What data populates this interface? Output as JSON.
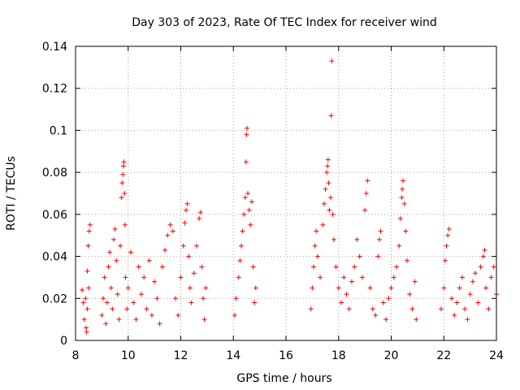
{
  "chart_data": {
    "type": "scatter",
    "title": "Day 303 of 2023, Rate Of TEC Index for receiver wind",
    "xlabel": "GPS time / hours",
    "ylabel": "ROTI / TECUs",
    "xlim": [
      8,
      24
    ],
    "ylim": [
      0,
      0.14
    ],
    "x_ticks": [
      8,
      10,
      12,
      14,
      16,
      18,
      20,
      22,
      24
    ],
    "y_ticks": [
      0,
      0.02,
      0.04,
      0.06,
      0.08,
      0.1,
      0.12,
      0.14
    ],
    "x_tick_labels": [
      "8",
      "10",
      "12",
      "14",
      "16",
      "18",
      "20",
      "22",
      "24"
    ],
    "y_tick_labels": [
      "0",
      "0.02",
      "0.04",
      "0.06",
      "0.08",
      "0.1",
      "0.12",
      "0.14"
    ],
    "grid": true,
    "legend": "none",
    "marker": "+",
    "color": "#ff0000",
    "series": [
      {
        "points": [
          [
            8.25,
            0.024
          ],
          [
            8.3,
            0.018
          ],
          [
            8.33,
            0.01
          ],
          [
            8.4,
            0.006
          ],
          [
            8.45,
            0.015
          ],
          [
            8.5,
            0.025
          ],
          [
            8.45,
            0.033
          ],
          [
            8.48,
            0.045
          ],
          [
            8.52,
            0.052
          ],
          [
            8.55,
            0.055
          ],
          [
            8.38,
            0.02
          ],
          [
            8.42,
            0.004
          ],
          [
            9.0,
            0.012
          ],
          [
            9.05,
            0.02
          ],
          [
            9.1,
            0.03
          ],
          [
            9.15,
            0.008
          ],
          [
            9.2,
            0.018
          ],
          [
            9.25,
            0.035
          ],
          [
            9.3,
            0.042
          ],
          [
            9.35,
            0.025
          ],
          [
            9.4,
            0.015
          ],
          [
            9.45,
            0.048
          ],
          [
            9.5,
            0.053
          ],
          [
            9.55,
            0.038
          ],
          [
            9.6,
            0.022
          ],
          [
            9.65,
            0.01
          ],
          [
            9.7,
            0.045
          ],
          [
            9.75,
            0.068
          ],
          [
            9.77,
            0.075
          ],
          [
            9.8,
            0.079
          ],
          [
            9.82,
            0.083
          ],
          [
            9.84,
            0.085
          ],
          [
            9.86,
            0.07
          ],
          [
            9.88,
            0.055
          ],
          [
            9.9,
            0.03
          ],
          [
            9.95,
            0.015
          ],
          [
            10.0,
            0.025
          ],
          [
            10.1,
            0.042
          ],
          [
            10.2,
            0.018
          ],
          [
            10.3,
            0.01
          ],
          [
            10.4,
            0.035
          ],
          [
            10.5,
            0.022
          ],
          [
            10.6,
            0.03
          ],
          [
            10.7,
            0.015
          ],
          [
            10.8,
            0.038
          ],
          [
            10.9,
            0.012
          ],
          [
            11.0,
            0.028
          ],
          [
            11.1,
            0.02
          ],
          [
            11.2,
            0.008
          ],
          [
            11.3,
            0.035
          ],
          [
            11.4,
            0.043
          ],
          [
            11.5,
            0.05
          ],
          [
            11.6,
            0.055
          ],
          [
            11.7,
            0.052
          ],
          [
            11.8,
            0.02
          ],
          [
            11.9,
            0.012
          ],
          [
            12.0,
            0.03
          ],
          [
            12.1,
            0.045
          ],
          [
            12.15,
            0.056
          ],
          [
            12.2,
            0.062
          ],
          [
            12.25,
            0.065
          ],
          [
            12.3,
            0.04
          ],
          [
            12.35,
            0.025
          ],
          [
            12.4,
            0.018
          ],
          [
            12.5,
            0.032
          ],
          [
            12.6,
            0.045
          ],
          [
            12.7,
            0.058
          ],
          [
            12.75,
            0.061
          ],
          [
            12.8,
            0.035
          ],
          [
            12.85,
            0.02
          ],
          [
            12.9,
            0.01
          ],
          [
            12.95,
            0.025
          ],
          [
            14.05,
            0.012
          ],
          [
            14.1,
            0.02
          ],
          [
            14.2,
            0.03
          ],
          [
            14.25,
            0.038
          ],
          [
            14.3,
            0.045
          ],
          [
            14.35,
            0.052
          ],
          [
            14.4,
            0.06
          ],
          [
            14.45,
            0.068
          ],
          [
            14.48,
            0.085
          ],
          [
            14.5,
            0.098
          ],
          [
            14.52,
            0.101
          ],
          [
            14.55,
            0.07
          ],
          [
            14.6,
            0.062
          ],
          [
            14.65,
            0.055
          ],
          [
            14.7,
            0.066
          ],
          [
            14.75,
            0.035
          ],
          [
            14.8,
            0.018
          ],
          [
            14.85,
            0.025
          ],
          [
            16.95,
            0.015
          ],
          [
            17.0,
            0.025
          ],
          [
            17.05,
            0.035
          ],
          [
            17.1,
            0.045
          ],
          [
            17.15,
            0.052
          ],
          [
            17.2,
            0.04
          ],
          [
            17.3,
            0.03
          ],
          [
            17.4,
            0.055
          ],
          [
            17.45,
            0.065
          ],
          [
            17.5,
            0.072
          ],
          [
            17.55,
            0.08
          ],
          [
            17.58,
            0.083
          ],
          [
            17.6,
            0.086
          ],
          [
            17.62,
            0.075
          ],
          [
            17.65,
            0.062
          ],
          [
            17.7,
            0.068
          ],
          [
            17.72,
            0.107
          ],
          [
            17.74,
            0.133
          ],
          [
            17.78,
            0.06
          ],
          [
            17.82,
            0.048
          ],
          [
            17.9,
            0.035
          ],
          [
            18.0,
            0.025
          ],
          [
            18.1,
            0.018
          ],
          [
            18.2,
            0.03
          ],
          [
            18.3,
            0.022
          ],
          [
            18.4,
            0.015
          ],
          [
            18.5,
            0.028
          ],
          [
            18.6,
            0.035
          ],
          [
            18.7,
            0.048
          ],
          [
            18.8,
            0.04
          ],
          [
            18.9,
            0.03
          ],
          [
            19.0,
            0.062
          ],
          [
            19.05,
            0.07
          ],
          [
            19.1,
            0.076
          ],
          [
            19.2,
            0.025
          ],
          [
            19.3,
            0.015
          ],
          [
            19.4,
            0.012
          ],
          [
            19.5,
            0.04
          ],
          [
            19.55,
            0.048
          ],
          [
            19.6,
            0.052
          ],
          [
            19.7,
            0.018
          ],
          [
            19.8,
            0.01
          ],
          [
            19.9,
            0.02
          ],
          [
            20.0,
            0.025
          ],
          [
            20.1,
            0.03
          ],
          [
            20.2,
            0.035
          ],
          [
            20.3,
            0.045
          ],
          [
            20.35,
            0.058
          ],
          [
            20.4,
            0.068
          ],
          [
            20.42,
            0.072
          ],
          [
            20.45,
            0.076
          ],
          [
            20.5,
            0.065
          ],
          [
            20.55,
            0.052
          ],
          [
            20.6,
            0.038
          ],
          [
            20.7,
            0.022
          ],
          [
            20.8,
            0.015
          ],
          [
            20.9,
            0.028
          ],
          [
            20.95,
            0.01
          ],
          [
            21.9,
            0.015
          ],
          [
            22.0,
            0.025
          ],
          [
            22.05,
            0.038
          ],
          [
            22.1,
            0.045
          ],
          [
            22.15,
            0.05
          ],
          [
            22.2,
            0.053
          ],
          [
            22.3,
            0.02
          ],
          [
            22.4,
            0.012
          ],
          [
            22.5,
            0.018
          ],
          [
            22.6,
            0.025
          ],
          [
            22.7,
            0.03
          ],
          [
            22.8,
            0.015
          ],
          [
            22.9,
            0.01
          ],
          [
            23.0,
            0.022
          ],
          [
            23.1,
            0.028
          ],
          [
            23.2,
            0.032
          ],
          [
            23.3,
            0.018
          ],
          [
            23.4,
            0.035
          ],
          [
            23.5,
            0.04
          ],
          [
            23.55,
            0.043
          ],
          [
            23.6,
            0.025
          ],
          [
            23.7,
            0.015
          ],
          [
            23.8,
            0.03
          ],
          [
            23.9,
            0.035
          ],
          [
            24.0,
            0.022
          ]
        ]
      }
    ]
  }
}
